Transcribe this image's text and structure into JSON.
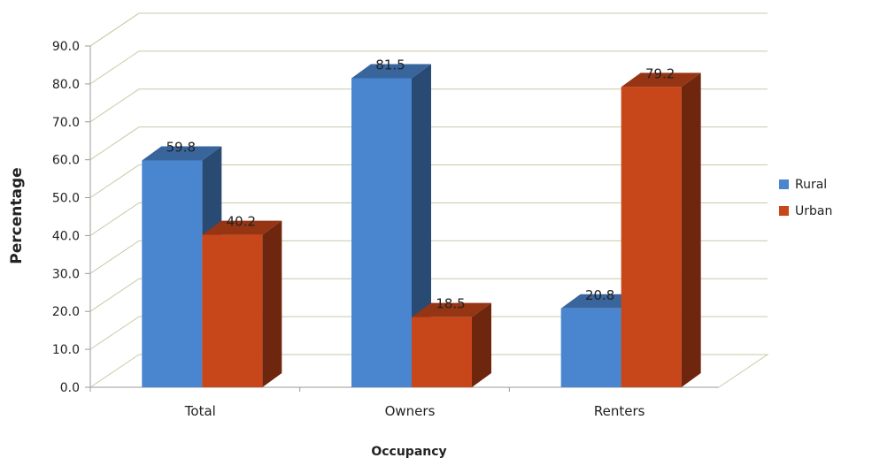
{
  "chart_data": {
    "type": "bar",
    "title": "",
    "xlabel": "Occupancy",
    "ylabel": "Percentage",
    "categories": [
      "Total",
      "Owners",
      "Renters"
    ],
    "series": [
      {
        "name": "Rural",
        "values": [
          59.8,
          81.5,
          20.8
        ],
        "color": "#4a86d0"
      },
      {
        "name": "Urban",
        "values": [
          40.2,
          18.5,
          79.2
        ],
        "color": "#c8471a"
      }
    ],
    "data_labels": [
      [
        "59.8",
        "81.5",
        "20.8"
      ],
      [
        "40.2",
        "18.5",
        "79.2"
      ]
    ],
    "ylim": [
      0,
      90
    ],
    "ytick_labels": [
      "0.0",
      "10.0",
      "20.0",
      "30.0",
      "40.0",
      "50.0",
      "60.0",
      "70.0",
      "80.0",
      "90.0"
    ],
    "grid": true,
    "legend_placement": "right",
    "style": "3d-clustered-column"
  }
}
